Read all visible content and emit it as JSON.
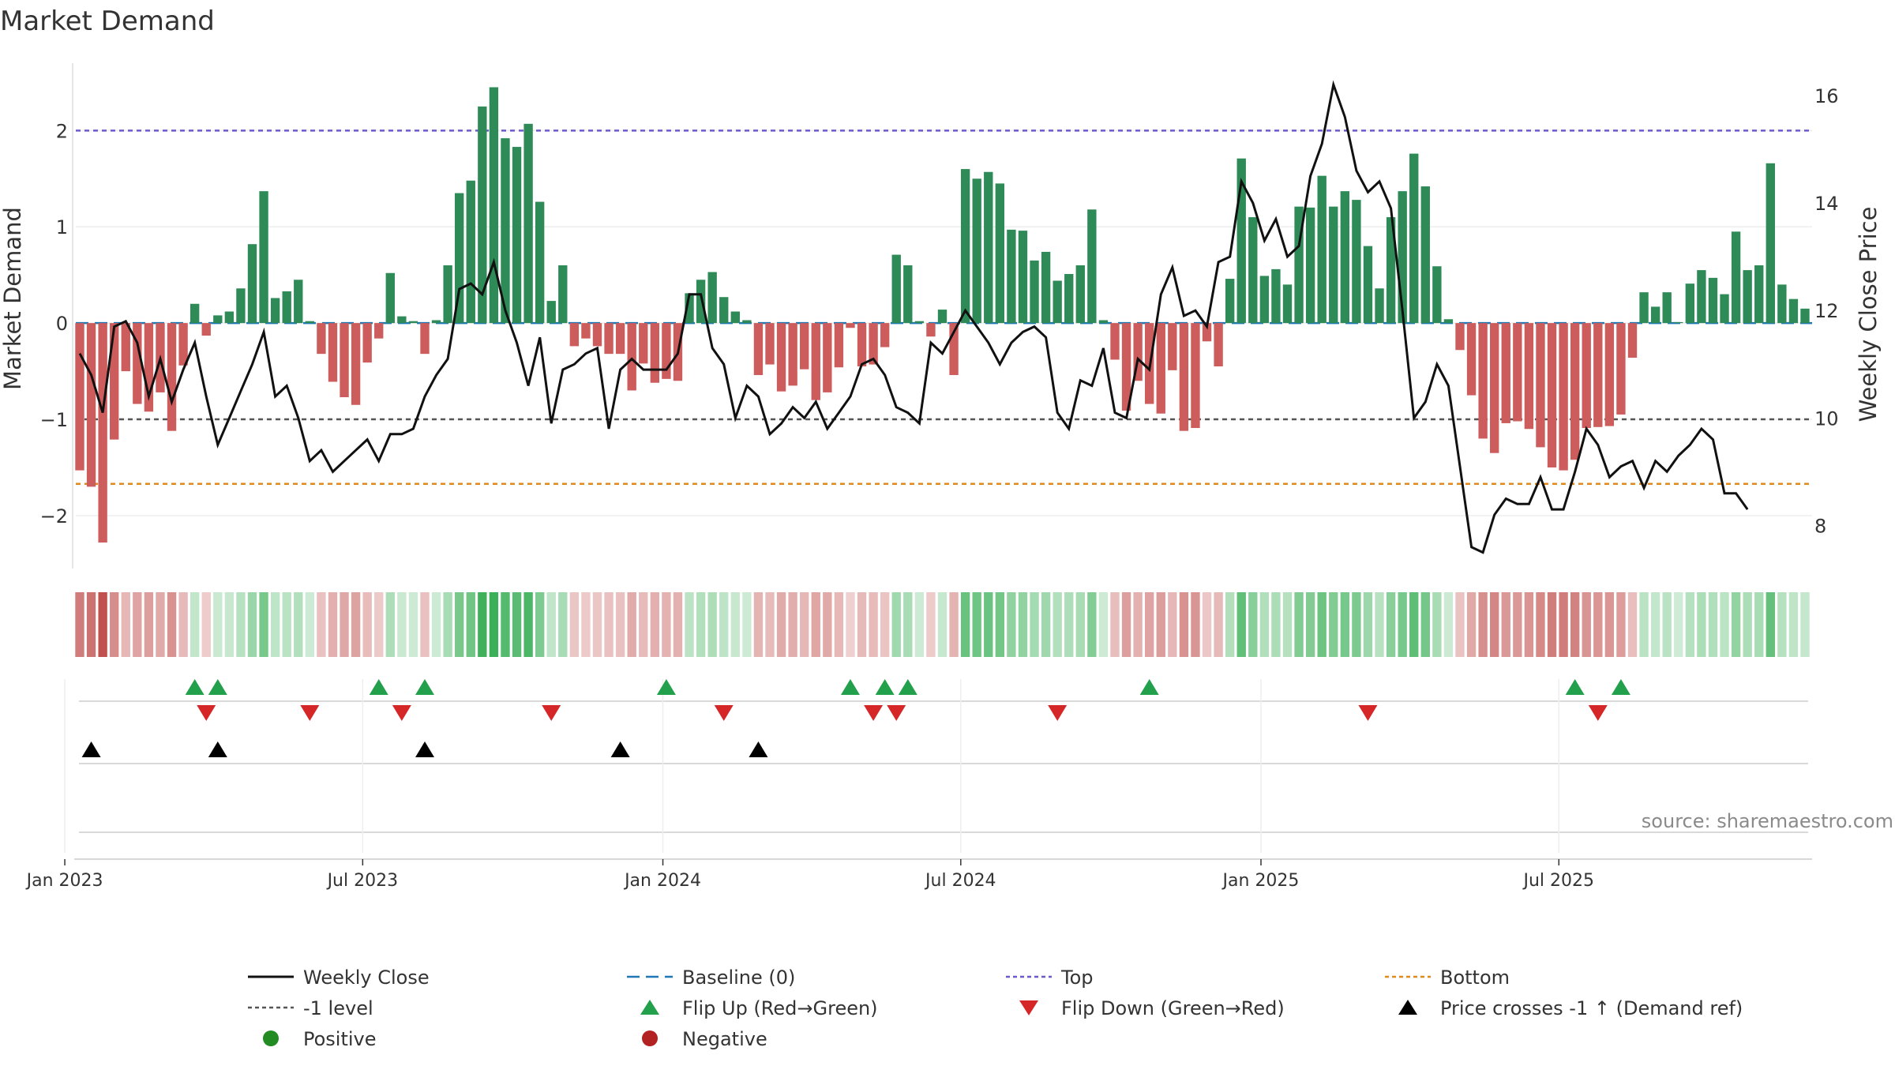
{
  "colors": {
    "positive_bar": "#2e8b57",
    "negative_bar": "#cd5c5c",
    "price_line": "#111111",
    "baseline": "#1f77b4",
    "top": "#6a5acd",
    "bottom": "#e08a1e",
    "minus1": "#555555",
    "flip_up": "#22a04b",
    "flip_down": "#d62728",
    "cross": "#000000",
    "positive_dot": "#228b22",
    "negative_dot": "#b22222"
  },
  "chart_data": {
    "type": "bar",
    "title": "Market Demand",
    "source": "source: sharemaestro.com",
    "ylabel": "Market Demand",
    "y2label": "Weekly Close Price",
    "ylim": [
      -2.55,
      2.7
    ],
    "y2lim": [
      7.2,
      16.6
    ],
    "yticks": [
      {
        "v": 2,
        "label": "2"
      },
      {
        "v": 1,
        "label": "1"
      },
      {
        "v": 0,
        "label": "0"
      },
      {
        "v": -1,
        "label": "−1"
      },
      {
        "v": -2,
        "label": "−2"
      }
    ],
    "y2ticks": [
      {
        "v": 16,
        "label": "16"
      },
      {
        "v": 14,
        "label": "14"
      },
      {
        "v": 12,
        "label": "12"
      },
      {
        "v": 10,
        "label": "10"
      },
      {
        "v": 8,
        "label": "8"
      }
    ],
    "reference_lines": {
      "top": 2.0,
      "minus1": -1.0,
      "bottom": -1.67,
      "baseline": 0
    },
    "first_week": "2023-01-02",
    "xticks": [
      {
        "label": "Jan 2023",
        "week": -1.3
      },
      {
        "label": "Jul 2023",
        "week": 24.6
      },
      {
        "label": "Jan 2024",
        "week": 50.7
      },
      {
        "label": "Jul 2024",
        "week": 76.6
      },
      {
        "label": "Jan 2025",
        "week": 102.7
      },
      {
        "label": "Jul 2025",
        "week": 128.6
      }
    ],
    "demand": [
      -1.53,
      -1.7,
      -2.28,
      -1.21,
      -0.5,
      -0.84,
      -0.92,
      -0.72,
      -1.12,
      -0.44,
      0.2,
      -0.13,
      0.08,
      0.12,
      0.36,
      0.82,
      1.37,
      0.26,
      0.33,
      0.45,
      0.02,
      -0.32,
      -0.61,
      -0.77,
      -0.85,
      -0.41,
      -0.16,
      0.52,
      0.07,
      0.02,
      -0.32,
      0.03,
      0.6,
      1.35,
      1.48,
      2.25,
      2.45,
      1.92,
      1.83,
      2.07,
      1.26,
      0.23,
      0.6,
      -0.24,
      -0.16,
      -0.24,
      -0.32,
      -0.32,
      -0.7,
      -0.42,
      -0.62,
      -0.58,
      -0.6,
      0.31,
      0.45,
      0.53,
      0.27,
      0.12,
      0.03,
      -0.54,
      -0.43,
      -0.71,
      -0.65,
      -0.48,
      -0.8,
      -0.72,
      -0.46,
      -0.05,
      -0.45,
      -0.43,
      -0.25,
      0.71,
      0.6,
      0.02,
      -0.14,
      0.14,
      -0.54,
      1.6,
      1.5,
      1.57,
      1.45,
      0.97,
      0.96,
      0.65,
      0.74,
      0.44,
      0.51,
      0.6,
      1.18,
      0.03,
      -0.38,
      -0.91,
      -0.6,
      -0.84,
      -0.94,
      -0.49,
      -1.12,
      -1.09,
      -0.19,
      -0.45,
      0.46,
      1.71,
      1.1,
      0.49,
      0.56,
      0.4,
      1.21,
      1.2,
      1.53,
      1.21,
      1.37,
      1.28,
      0.8,
      0.36,
      1.1,
      1.37,
      1.76,
      1.42,
      0.59,
      0.04,
      -0.28,
      -0.75,
      -1.2,
      -1.35,
      -1.04,
      -1.02,
      -1.1,
      -1.29,
      -1.5,
      -1.53,
      -1.42,
      -1.09,
      -1.08,
      -1.07,
      -0.95,
      -0.36,
      0.32,
      0.17,
      0.32,
      0.01,
      0.41,
      0.55,
      0.47,
      0.3,
      0.95,
      0.55,
      0.6,
      1.66,
      0.4,
      0.25,
      0.15
    ],
    "price": [
      11.2,
      10.8,
      10.1,
      11.7,
      11.8,
      11.4,
      10.4,
      11.1,
      10.3,
      10.9,
      11.4,
      10.4,
      9.5,
      10.0,
      10.5,
      11.0,
      11.6,
      10.4,
      10.6,
      10.0,
      9.2,
      9.4,
      9.0,
      9.2,
      9.4,
      9.6,
      9.2,
      9.7,
      9.7,
      9.8,
      10.4,
      10.8,
      11.1,
      12.4,
      12.5,
      12.3,
      12.9,
      12.0,
      11.4,
      10.6,
      11.5,
      9.9,
      10.9,
      11.0,
      11.2,
      11.3,
      9.8,
      10.9,
      11.1,
      10.9,
      10.9,
      10.9,
      11.2,
      12.3,
      12.3,
      11.3,
      11.0,
      10.0,
      10.6,
      10.4,
      9.7,
      9.9,
      10.2,
      10.0,
      10.3,
      9.8,
      10.1,
      10.4,
      11.0,
      11.1,
      10.8,
      10.2,
      10.1,
      9.9,
      11.4,
      11.2,
      11.6,
      12.0,
      11.7,
      11.4,
      11.0,
      11.4,
      11.6,
      11.7,
      11.5,
      10.1,
      9.8,
      10.7,
      10.6,
      11.3,
      10.1,
      10.0,
      11.1,
      10.9,
      12.3,
      12.8,
      11.9,
      12.0,
      11.7,
      12.9,
      13.0,
      14.4,
      14.0,
      13.3,
      13.7,
      13.0,
      13.2,
      14.5,
      15.1,
      16.2,
      15.6,
      14.6,
      14.2,
      14.4,
      13.9,
      12.0,
      10.0,
      10.3,
      11.0,
      10.6,
      9.1,
      7.6,
      7.5,
      8.2,
      8.5,
      8.4,
      8.4,
      8.9,
      8.3,
      8.3,
      9.0,
      9.8,
      9.5,
      8.9,
      9.1,
      9.2,
      8.7,
      9.2,
      9.0,
      9.3,
      9.5,
      9.8,
      9.6,
      8.6,
      8.6,
      8.3
    ],
    "flip_up_weeks": [
      10,
      12,
      26,
      30,
      51,
      67,
      70,
      72,
      93,
      130,
      134
    ],
    "flip_down_weeks": [
      11,
      20,
      28,
      41,
      56,
      69,
      71,
      85,
      112,
      132
    ],
    "cross_weeks": [
      1,
      12,
      30,
      47,
      59
    ],
    "legend": [
      {
        "id": "weekly-close",
        "label": "Weekly Close",
        "symbol": "line-solid",
        "color": "price_line"
      },
      {
        "id": "baseline",
        "label": "Baseline (0)",
        "symbol": "line-dash",
        "color": "baseline"
      },
      {
        "id": "top",
        "label": "Top",
        "symbol": "line-dot",
        "color": "top"
      },
      {
        "id": "bottom",
        "label": "Bottom",
        "symbol": "line-dot",
        "color": "bottom"
      },
      {
        "id": "minus1",
        "label": "-1 level",
        "symbol": "line-dot",
        "color": "minus1"
      },
      {
        "id": "flip-up",
        "label": "Flip Up (Red→Green)",
        "symbol": "tri-up",
        "color": "flip_up"
      },
      {
        "id": "flip-down",
        "label": "Flip Down (Green→Red)",
        "symbol": "tri-down",
        "color": "flip_down"
      },
      {
        "id": "cross",
        "label": "Price crosses -1 ↑ (Demand ref)",
        "symbol": "tri-up",
        "color": "cross"
      },
      {
        "id": "positive",
        "label": "Positive",
        "symbol": "dot",
        "color": "positive_dot"
      },
      {
        "id": "negative",
        "label": "Negative",
        "symbol": "dot",
        "color": "negative_dot"
      }
    ]
  }
}
